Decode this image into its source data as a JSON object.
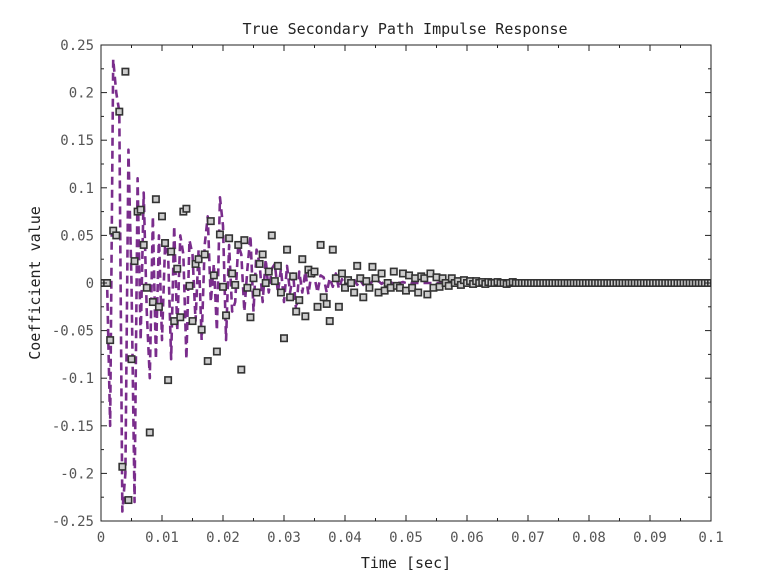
{
  "chart_data": {
    "type": "line",
    "title": "True Secondary Path Impulse Response",
    "xlabel": "Time [sec]",
    "ylabel": "Coefficient value",
    "xlim": [
      0,
      0.1
    ],
    "ylim": [
      -0.25,
      0.25
    ],
    "xticks": [
      "0",
      "0.01",
      "0.02",
      "0.03",
      "0.04",
      "0.05",
      "0.06",
      "0.07",
      "0.08",
      "0.09",
      "0.1"
    ],
    "yticks": [
      "0.25",
      "0.2",
      "0.15",
      "0.1",
      "0.05",
      "0",
      "-0.05",
      "-0.1",
      "-0.15",
      "-0.2",
      "-0.25"
    ],
    "grid": false,
    "legend": "none",
    "sample_interval": 0.0005,
    "colors": {
      "line": "#7a2d8c",
      "marker_edge": "#333333",
      "marker_fill": "#cccccc",
      "axis": "#222222"
    },
    "series": [
      {
        "style": "dashed-line",
        "values": [
          0,
          0,
          0,
          -0.15,
          0.235,
          0.2,
          0.18,
          -0.24,
          -0.2,
          0.14,
          0,
          -0.23,
          0.11,
          -0.06,
          0.095,
          -0.03,
          -0.1,
          0.07,
          -0.08,
          0.05,
          -0.06,
          0.04,
          0.03,
          -0.08,
          0.06,
          -0.05,
          0.05,
          0.03,
          -0.08,
          0.045,
          0.03,
          -0.04,
          0.035,
          -0.06,
          0.04,
          0.07,
          -0.02,
          0.02,
          -0.05,
          0.09,
          0.06,
          -0.06,
          0.04,
          -0.03,
          -0.02,
          0.04,
          0.03,
          -0.03,
          0.015,
          0.05,
          -0.03,
          0.035,
          0.02,
          -0.02,
          0.025,
          -0.01,
          0.015,
          0.02,
          -0.01,
          0.015,
          -0.02,
          0.018,
          -0.01,
          0.01,
          -0.03,
          0.012,
          -0.01,
          0.012,
          -0.012,
          0.01,
          0.006,
          -0.01,
          0.008,
          0.006,
          -0.01,
          0.005,
          -0.004,
          0.01,
          -0.006,
          0.004,
          -0.003,
          0.006,
          -0.003,
          0.004,
          -0.002,
          0.003,
          -0.002,
          0.003,
          -0.002,
          0.002,
          0.001,
          0.002,
          -0.001,
          0.002,
          -0.001,
          0.001,
          -0.001,
          0.001,
          0,
          0.001,
          0,
          0.001,
          0,
          0,
          0,
          0,
          0,
          0,
          0,
          0,
          0,
          0,
          0,
          0,
          0,
          0,
          0,
          0,
          0,
          0,
          0,
          0,
          0,
          0,
          0,
          0,
          0,
          0,
          0,
          0,
          0,
          0,
          0,
          0,
          0,
          0,
          0,
          0,
          0,
          0,
          0,
          0,
          0,
          0,
          0,
          0,
          0,
          0,
          0,
          0,
          0,
          0,
          0,
          0,
          0,
          0,
          0,
          0,
          0,
          0,
          0,
          0,
          0,
          0,
          0,
          0,
          0,
          0,
          0,
          0,
          0,
          0,
          0,
          0,
          0,
          0,
          0,
          0,
          0,
          0,
          0,
          0,
          0,
          0,
          0,
          0,
          0,
          0,
          0,
          0,
          0,
          0,
          0,
          0,
          0,
          0,
          0,
          0,
          0,
          0,
          0,
          0,
          0
        ]
      },
      {
        "style": "square-markers",
        "values": [
          0,
          0,
          0,
          -0.06,
          0.055,
          0.05,
          0.18,
          -0.193,
          0.222,
          -0.228,
          -0.08,
          0.023,
          0.075,
          0.077,
          0.04,
          -0.005,
          -0.157,
          -0.02,
          0.088,
          -0.025,
          0.07,
          0.042,
          -0.102,
          0.033,
          -0.04,
          0.015,
          -0.036,
          0.075,
          0.078,
          -0.003,
          -0.04,
          0.02,
          0.025,
          -0.049,
          0.03,
          -0.082,
          0.065,
          0.008,
          -0.072,
          0.051,
          -0.004,
          -0.034,
          0.047,
          0.01,
          -0.002,
          0.04,
          -0.091,
          0.045,
          -0.005,
          -0.036,
          0.005,
          -0.01,
          0.02,
          0.03,
          0,
          0.012,
          0.05,
          0.002,
          0.018,
          -0.01,
          -0.058,
          0.035,
          -0.015,
          0.007,
          -0.03,
          -0.018,
          0.025,
          -0.035,
          0.014,
          0.01,
          0.012,
          -0.025,
          0.04,
          -0.015,
          -0.022,
          -0.04,
          0.035,
          0.005,
          -0.025,
          0.01,
          -0.005,
          0.003,
          0,
          -0.01,
          0.018,
          0.005,
          -0.015,
          0.002,
          -0.005,
          0.017,
          0.005,
          -0.01,
          0.01,
          -0.008,
          0,
          -0.005,
          0.012,
          -0.003,
          -0.005,
          0.01,
          -0.008,
          0.008,
          -0.005,
          0.005,
          -0.01,
          0.007,
          0.005,
          -0.012,
          0.01,
          -0.005,
          0.006,
          -0.004,
          0.005,
          0,
          -0.003,
          0.005,
          0,
          0.002,
          -0.002,
          0.003,
          0,
          0.002,
          -0.001,
          0.002,
          0,
          0.001,
          -0.001,
          0.001,
          0,
          0,
          0.001,
          0,
          0,
          -0.001,
          0,
          0.001,
          0,
          0,
          0,
          0,
          0,
          0,
          0,
          0,
          0,
          0,
          0,
          0,
          0,
          0,
          0,
          0,
          0,
          0,
          0,
          0,
          0,
          0,
          0,
          0,
          0,
          0,
          0,
          0,
          0,
          0,
          0,
          0,
          0,
          0,
          0,
          0,
          0,
          0,
          0,
          0,
          0,
          0,
          0,
          0,
          0,
          0,
          0,
          0,
          0,
          0,
          0,
          0,
          0,
          0,
          0,
          0,
          0,
          0,
          0,
          0,
          0,
          0,
          0,
          0,
          0,
          0,
          0,
          0,
          0,
          0,
          0,
          0,
          0
        ]
      }
    ]
  }
}
